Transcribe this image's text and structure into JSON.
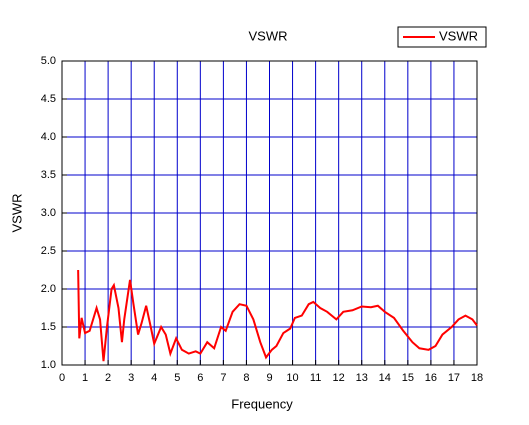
{
  "chart_data": {
    "type": "line",
    "title": "VSWR",
    "x_label": "Frequency",
    "y_label": "VSWR",
    "x": [
      0.7,
      0.75,
      0.85,
      1.0,
      1.2,
      1.5,
      1.65,
      1.8,
      1.95,
      2.15,
      2.25,
      2.45,
      2.6,
      2.7,
      2.95,
      3.1,
      3.3,
      3.45,
      3.65,
      3.85,
      4.0,
      4.3,
      4.5,
      4.7,
      4.95,
      5.2,
      5.5,
      5.8,
      6.0,
      6.3,
      6.6,
      6.9,
      7.1,
      7.4,
      7.7,
      8.0,
      8.3,
      8.6,
      8.85,
      9.1,
      9.3,
      9.6,
      9.9,
      10.1,
      10.4,
      10.7,
      10.9,
      11.2,
      11.5,
      11.9,
      12.2,
      12.6,
      13.0,
      13.4,
      13.7,
      14.0,
      14.4,
      14.8,
      15.2,
      15.5,
      15.9,
      16.2,
      16.5,
      16.9,
      17.2,
      17.5,
      17.8,
      18.0
    ],
    "series": [
      {
        "name": "VSWR",
        "color": "#ff0000",
        "values": [
          2.25,
          1.35,
          1.62,
          1.42,
          1.45,
          1.75,
          1.6,
          1.05,
          1.5,
          2.0,
          2.05,
          1.75,
          1.3,
          1.6,
          2.12,
          1.8,
          1.4,
          1.55,
          1.78,
          1.5,
          1.28,
          1.5,
          1.4,
          1.15,
          1.35,
          1.2,
          1.15,
          1.18,
          1.15,
          1.3,
          1.22,
          1.5,
          1.45,
          1.7,
          1.8,
          1.78,
          1.6,
          1.3,
          1.1,
          1.2,
          1.25,
          1.42,
          1.48,
          1.62,
          1.65,
          1.8,
          1.83,
          1.75,
          1.7,
          1.6,
          1.7,
          1.72,
          1.77,
          1.76,
          1.78,
          1.7,
          1.62,
          1.45,
          1.3,
          1.22,
          1.2,
          1.25,
          1.4,
          1.5,
          1.6,
          1.65,
          1.6,
          1.52
        ]
      }
    ],
    "xlim": [
      0,
      18
    ],
    "xticks": [
      0,
      1,
      2,
      3,
      4,
      5,
      6,
      7,
      8,
      9,
      10,
      11,
      12,
      13,
      14,
      15,
      16,
      17,
      18
    ],
    "ylim": [
      1.0,
      5.0
    ],
    "yticks": [
      {
        "value": 1.0,
        "label": "1.0"
      },
      {
        "value": 1.5,
        "label": "1.5"
      },
      {
        "value": 2.0,
        "label": "2.0"
      },
      {
        "value": 2.5,
        "label": "2.5"
      },
      {
        "value": 3.0,
        "label": "3.0"
      },
      {
        "value": 3.5,
        "label": "3.5"
      },
      {
        "value": 4.0,
        "label": "4.0"
      },
      {
        "value": 4.5,
        "label": "4.5"
      },
      {
        "value": 5.0,
        "label": "5.0"
      }
    ],
    "grid": true,
    "grid_color": "#0000cc",
    "legend": "upper right"
  }
}
